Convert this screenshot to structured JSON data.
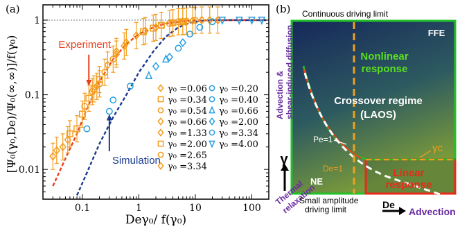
{
  "chart_data": [
    {
      "panel_label": "(a)",
      "type": "scatter",
      "xlabel": "Deγ₀/ f(γ₀)",
      "ylabel": "[Ψ₀(γ₀,De)/Ψ₀(∞,∞)]/f(γ₀)",
      "x_scale": "log",
      "y_scale": "log",
      "xlim": [
        0.02,
        200
      ],
      "ylim": [
        0.004,
        1.6
      ],
      "x_ticks": [
        0.1,
        1,
        10,
        100
      ],
      "x_tick_labels": [
        "0.1",
        "1",
        "10",
        "100"
      ],
      "y_ticks": [
        0.01,
        0.1,
        1
      ],
      "y_tick_labels": [
        "0.01",
        "0.1",
        "1"
      ],
      "reference_line_y": 1,
      "annotations": [
        {
          "text": "Experiment",
          "color": "#e8401c",
          "x": 0.13,
          "y": 0.33,
          "arrow_to": [
            0.13,
            0.12
          ]
        },
        {
          "text": "Simulation",
          "color": "#1a3a8f",
          "x": 0.3,
          "y": 0.013,
          "arrow_to": [
            0.3,
            0.06
          ]
        }
      ],
      "curves": [
        {
          "name": "experiment-fit",
          "color": "#e8401c",
          "dashed": true,
          "x": [
            0.03,
            0.05,
            0.08,
            0.12,
            0.2,
            0.35,
            0.6,
            1,
            1.8,
            3,
            5,
            8,
            12,
            20,
            100,
            180
          ],
          "y": [
            0.006,
            0.014,
            0.03,
            0.065,
            0.15,
            0.3,
            0.48,
            0.65,
            0.8,
            0.9,
            0.95,
            0.98,
            0.99,
            1,
            1,
            1
          ]
        },
        {
          "name": "simulation-fit",
          "color": "#1a3a8f",
          "dashed": true,
          "x": [
            0.08,
            0.12,
            0.2,
            0.35,
            0.6,
            1,
            1.8,
            3,
            5,
            8,
            12,
            20,
            100,
            180
          ],
          "y": [
            0.0045,
            0.009,
            0.022,
            0.05,
            0.1,
            0.2,
            0.38,
            0.6,
            0.8,
            0.92,
            0.97,
            1,
            1,
            1
          ]
        }
      ],
      "series": [
        {
          "name": "γ₀ =0.06",
          "group": "experiment",
          "marker": "diamond",
          "color": "#f39c1c",
          "points": [
            [
              0.03,
              0.015
            ],
            [
              0.035,
              0.018
            ],
            [
              0.045,
              0.02
            ],
            [
              0.055,
              0.025
            ]
          ]
        },
        {
          "name": "γ₀ =0.34",
          "group": "experiment",
          "marker": "square",
          "color": "#f39c1c",
          "points": [
            [
              0.06,
              0.03
            ],
            [
              0.08,
              0.035
            ],
            [
              0.1,
              0.055
            ],
            [
              0.13,
              0.09
            ],
            [
              0.16,
              0.12
            ],
            [
              0.2,
              0.16
            ]
          ]
        },
        {
          "name": "γ₀ =0.54",
          "group": "experiment",
          "marker": "circle",
          "color": "#f39c1c",
          "points": [
            [
              0.11,
              0.07
            ],
            [
              0.15,
              0.11
            ],
            [
              0.2,
              0.14
            ],
            [
              0.25,
              0.2
            ],
            [
              0.35,
              0.3
            ]
          ]
        },
        {
          "name": "γ₀ =0.66",
          "group": "experiment",
          "marker": "diamond",
          "color": "#f39c1c",
          "points": [
            [
              0.18,
              0.13
            ],
            [
              0.28,
              0.25
            ],
            [
              0.4,
              0.35
            ],
            [
              0.55,
              0.45
            ]
          ]
        },
        {
          "name": "γ₀ =1.33",
          "group": "experiment",
          "marker": "diamond",
          "color": "#f39c1c",
          "points": [
            [
              0.4,
              0.38
            ],
            [
              0.6,
              0.5
            ],
            [
              0.9,
              0.62
            ],
            [
              1.3,
              0.72
            ],
            [
              2,
              0.8
            ]
          ]
        },
        {
          "name": "γ₀ =2.00",
          "group": "experiment",
          "marker": "square",
          "color": "#f39c1c",
          "points": [
            [
              1.2,
              0.7
            ],
            [
              1.8,
              0.78
            ],
            [
              2.5,
              0.85
            ],
            [
              4,
              0.92
            ],
            [
              6,
              0.95
            ]
          ]
        },
        {
          "name": "γ₀ =2.65",
          "group": "experiment",
          "marker": "circle",
          "color": "#f39c1c",
          "points": [
            [
              2.5,
              0.85
            ],
            [
              3.5,
              0.9
            ],
            [
              5,
              0.95
            ],
            [
              7,
              0.97
            ],
            [
              10,
              0.99
            ]
          ]
        },
        {
          "name": "γ₀ =3.34",
          "group": "experiment",
          "marker": "diamond",
          "color": "#f39c1c",
          "points": [
            [
              4,
              0.92
            ],
            [
              6,
              0.96
            ],
            [
              9,
              0.98
            ],
            [
              13,
              1
            ],
            [
              18,
              1
            ],
            [
              25,
              1
            ]
          ]
        },
        {
          "name": "γ₀ =0.20",
          "group": "simulation",
          "marker": "circle",
          "color": "#2a9ee0",
          "points": [
            [
              0.12,
              0.035
            ],
            [
              0.3,
              0.06
            ]
          ]
        },
        {
          "name": "γ₀ =0.40",
          "group": "simulation",
          "marker": "circle",
          "color": "#2a9ee0",
          "points": [
            [
              0.35,
              0.085
            ],
            [
              0.7,
              0.13
            ]
          ]
        },
        {
          "name": "γ₀ =0.66",
          "group": "simulation",
          "marker": "triangle",
          "color": "#2a9ee0",
          "points": [
            [
              1.5,
              0.18
            ],
            [
              3,
              0.3
            ]
          ]
        },
        {
          "name": "γ₀ =2.00",
          "group": "simulation",
          "marker": "diamond",
          "color": "#2a9ee0",
          "points": [
            [
              2,
              0.24
            ],
            [
              3.5,
              0.32
            ],
            [
              6,
              0.5
            ]
          ]
        },
        {
          "name": "γ₀ =3.34",
          "group": "simulation",
          "marker": "circle",
          "color": "#2a9ee0",
          "points": [
            [
              5,
              0.42
            ],
            [
              8,
              0.65
            ],
            [
              12,
              0.8
            ],
            [
              20,
              0.95
            ]
          ]
        },
        {
          "name": "γ₀ =4.00",
          "group": "simulation",
          "marker": "triangle-down",
          "color": "#2a9ee0",
          "points": [
            [
              30,
              1
            ],
            [
              60,
              1
            ],
            [
              100,
              1
            ],
            [
              150,
              1
            ]
          ]
        }
      ]
    },
    {
      "panel_label": "(b)",
      "type": "diagram",
      "top_text": "Continuous driving limit",
      "bottom_text": "Small amplitude\ndriving limit",
      "x_axis_label": "De",
      "x_axis_caption": "Advection",
      "y_axis_label": "γ",
      "left_top_caption": [
        "Advection &",
        "shear-induced diffusion"
      ],
      "left_bottom_caption": [
        "Thermal",
        "relaxation"
      ],
      "regions": {
        "ffe": "FFE",
        "nonlinear": [
          "Nonlinear",
          "response"
        ],
        "crossover": [
          "Crossover regime",
          "(LAOS)"
        ],
        "ne": "NE",
        "linear": [
          "Linear",
          "response"
        ]
      },
      "boundary_labels": {
        "pe": "Pe=1",
        "de": "De=1",
        "gamma_c": "γc"
      },
      "colors": {
        "gradient_top": "#1a2a5e",
        "gradient_bottom": "#6a8a3a",
        "border_green": "#22c02a",
        "border_red": "#e82a1a",
        "orange": "#f0a020",
        "purple": "#6a2aa0",
        "white_curve": "#ffffff"
      }
    }
  ]
}
